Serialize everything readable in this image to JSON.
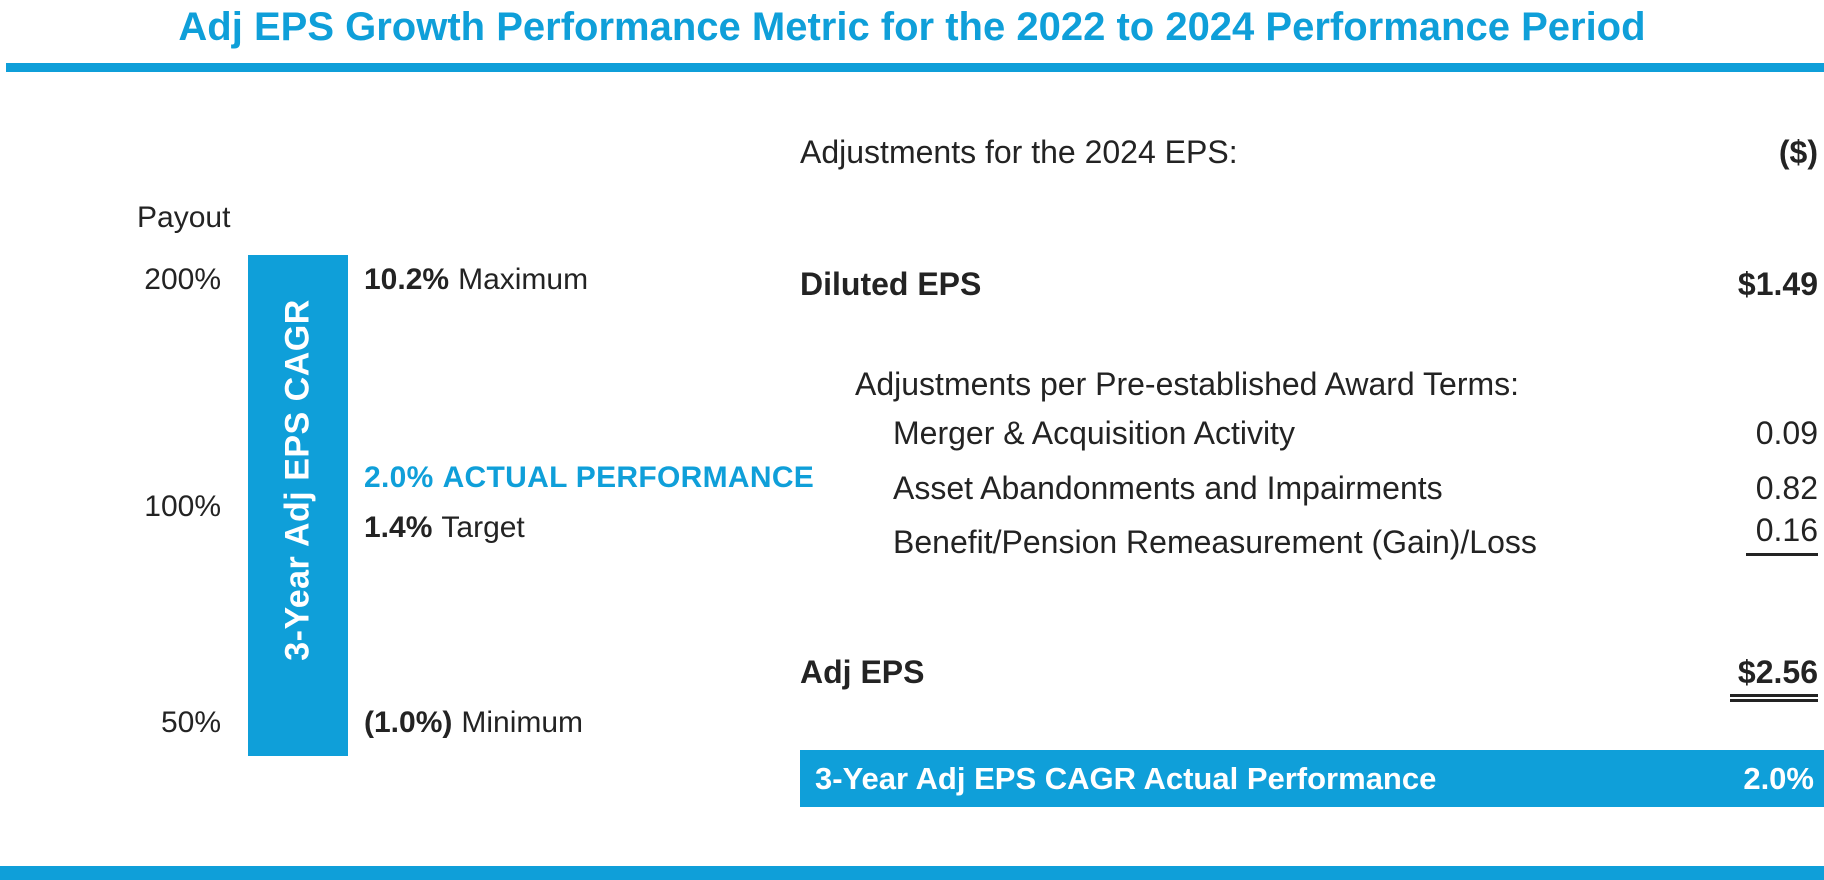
{
  "title": "Adj EPS Growth Performance Metric for the 2022 to 2024 Performance Period",
  "colors": {
    "accent": "#0f9fd9",
    "ink": "#232323",
    "bar_text": "#ffffff"
  },
  "payout_scale": {
    "axis_title": "Payout",
    "bar_label": "3-Year Adj EPS CAGR",
    "maximum": {
      "tick": "200%",
      "value": "10.2%",
      "label": "Maximum"
    },
    "actual": {
      "value": "2.0%",
      "label": "ACTUAL PERFORMANCE"
    },
    "target": {
      "tick": "100%",
      "value": "1.4%",
      "label": "Target"
    },
    "minimum": {
      "tick": "50%",
      "value": "(1.0%)",
      "label": "Minimum"
    }
  },
  "adjustments_table": {
    "header": {
      "label": "Adjustments for the 2024 EPS:",
      "unit": "($)"
    },
    "rows": [
      {
        "label": "Diluted EPS",
        "value": "$1.49"
      },
      {
        "label": "Adjustments per Pre-established Award Terms:",
        "value": ""
      },
      {
        "label": "Merger & Acquisition Activity",
        "value": "0.09"
      },
      {
        "label": "Asset Abandonments and Impairments",
        "value": "0.82"
      },
      {
        "label": "Benefit/Pension Remeasurement (Gain)/Loss",
        "value": "0.16"
      },
      {
        "label": "Adj EPS",
        "value": "$2.56"
      }
    ],
    "banner": {
      "label": "3-Year Adj EPS CAGR Actual Performance",
      "value": "2.0%"
    }
  },
  "chart_data": [
    {
      "type": "bar",
      "title": "Adj EPS Growth Performance Metric for the 2022 to 2024 Performance Period",
      "ylabel": "Payout",
      "bar_label": "3-Year Adj EPS CAGR",
      "payout_levels": [
        {
          "payout_pct": 200,
          "adj_eps_cagr_pct": 10.2,
          "label": "Maximum"
        },
        {
          "payout_pct": 100,
          "adj_eps_cagr_pct": 1.4,
          "label": "Target"
        },
        {
          "payout_pct": 50,
          "adj_eps_cagr_pct": -1.0,
          "label": "Minimum"
        }
      ],
      "actual": {
        "adj_eps_cagr_pct": 2.0,
        "label": "ACTUAL PERFORMANCE"
      },
      "legend_position": "none",
      "grid": false
    },
    {
      "type": "table",
      "title": "Adjustments for the 2024 EPS:",
      "unit": "($)",
      "rows": [
        [
          "Diluted EPS",
          1.49
        ],
        [
          "Merger & Acquisition Activity",
          0.09
        ],
        [
          "Asset Abandonments and Impairments",
          0.82
        ],
        [
          "Benefit/Pension Remeasurement (Gain)/Loss",
          0.16
        ],
        [
          "Adj EPS",
          2.56
        ],
        [
          "3-Year Adj EPS CAGR Actual Performance",
          "2.0%"
        ]
      ]
    }
  ]
}
